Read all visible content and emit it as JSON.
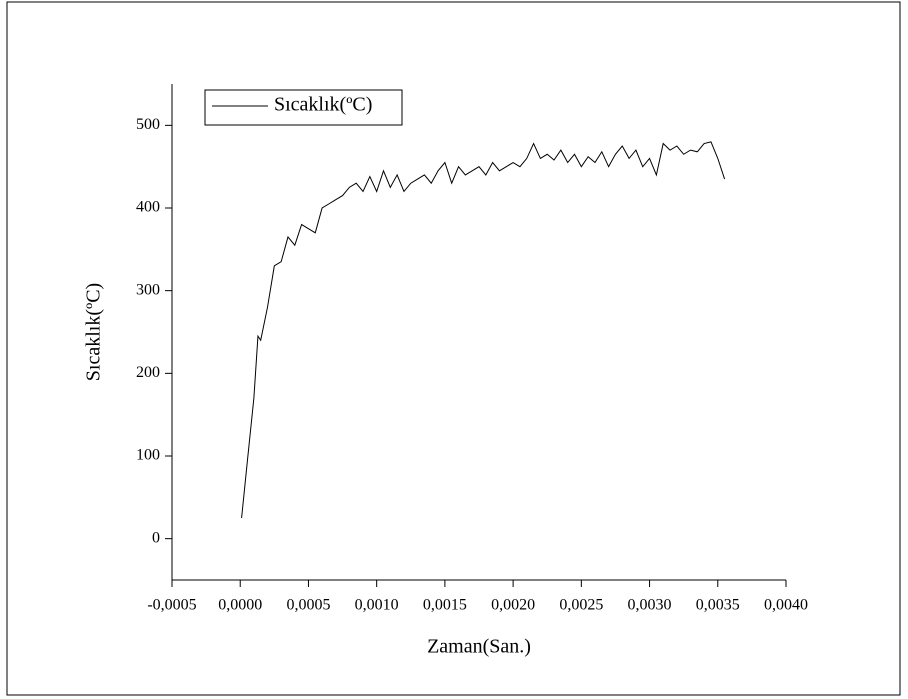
{
  "chart_data": {
    "type": "line",
    "x_label": "Zaman(San.)",
    "y_label": "Sıcaklık(ºC)",
    "xlim": [
      -0.0005,
      0.004
    ],
    "xticks": [
      {
        "value": -0.0005,
        "label": "-0,0005"
      },
      {
        "value": 0,
        "label": "0,0000"
      },
      {
        "value": 0.0005,
        "label": "0,0005"
      },
      {
        "value": 0.001,
        "label": "0,0010"
      },
      {
        "value": 0.0015,
        "label": "0,0015"
      },
      {
        "value": 0.002,
        "label": "0,0020"
      },
      {
        "value": 0.0025,
        "label": "0,0025"
      },
      {
        "value": 0.003,
        "label": "0,0030"
      },
      {
        "value": 0.0035,
        "label": "0,0035"
      },
      {
        "value": 0.004,
        "label": "0,0040"
      }
    ],
    "ylim": [
      -50,
      550
    ],
    "yticks": [
      0,
      100,
      200,
      300,
      400,
      500
    ],
    "legend": "upper left",
    "x": [
      1e-05,
      5e-05,
      0.0001,
      0.00013,
      0.00015,
      0.0002,
      0.00025,
      0.0003,
      0.00035,
      0.0004,
      0.00045,
      0.0005,
      0.00055,
      0.0006,
      0.00065,
      0.0007,
      0.00075,
      0.0008,
      0.00085,
      0.0009,
      0.00095,
      0.001,
      0.00105,
      0.0011,
      0.00115,
      0.0012,
      0.00125,
      0.0013,
      0.00135,
      0.0014,
      0.00145,
      0.0015,
      0.00155,
      0.0016,
      0.00165,
      0.0017,
      0.00175,
      0.0018,
      0.00185,
      0.0019,
      0.00195,
      0.002,
      0.00205,
      0.0021,
      0.00215,
      0.0022,
      0.00225,
      0.0023,
      0.00235,
      0.0024,
      0.00245,
      0.0025,
      0.00255,
      0.0026,
      0.00265,
      0.0027,
      0.00275,
      0.0028,
      0.00285,
      0.0029,
      0.00295,
      0.003,
      0.00305,
      0.0031,
      0.00315,
      0.0032,
      0.00325,
      0.0033,
      0.00335,
      0.0034,
      0.00345,
      0.0035,
      0.00355
    ],
    "series": [
      {
        "name": "Sıcaklık(ºC)",
        "color": "#000000",
        "values": [
          25,
          90,
          170,
          245,
          240,
          280,
          330,
          335,
          365,
          355,
          380,
          375,
          370,
          400,
          405,
          410,
          415,
          425,
          430,
          420,
          438,
          420,
          445,
          425,
          440,
          420,
          430,
          435,
          440,
          430,
          445,
          455,
          430,
          450,
          440,
          445,
          450,
          440,
          455,
          445,
          450,
          455,
          450,
          460,
          478,
          460,
          465,
          458,
          470,
          455,
          465,
          450,
          462,
          455,
          468,
          450,
          465,
          475,
          460,
          470,
          450,
          460,
          440,
          478,
          470,
          475,
          465,
          470,
          468,
          478,
          480,
          460,
          435
        ]
      }
    ]
  }
}
